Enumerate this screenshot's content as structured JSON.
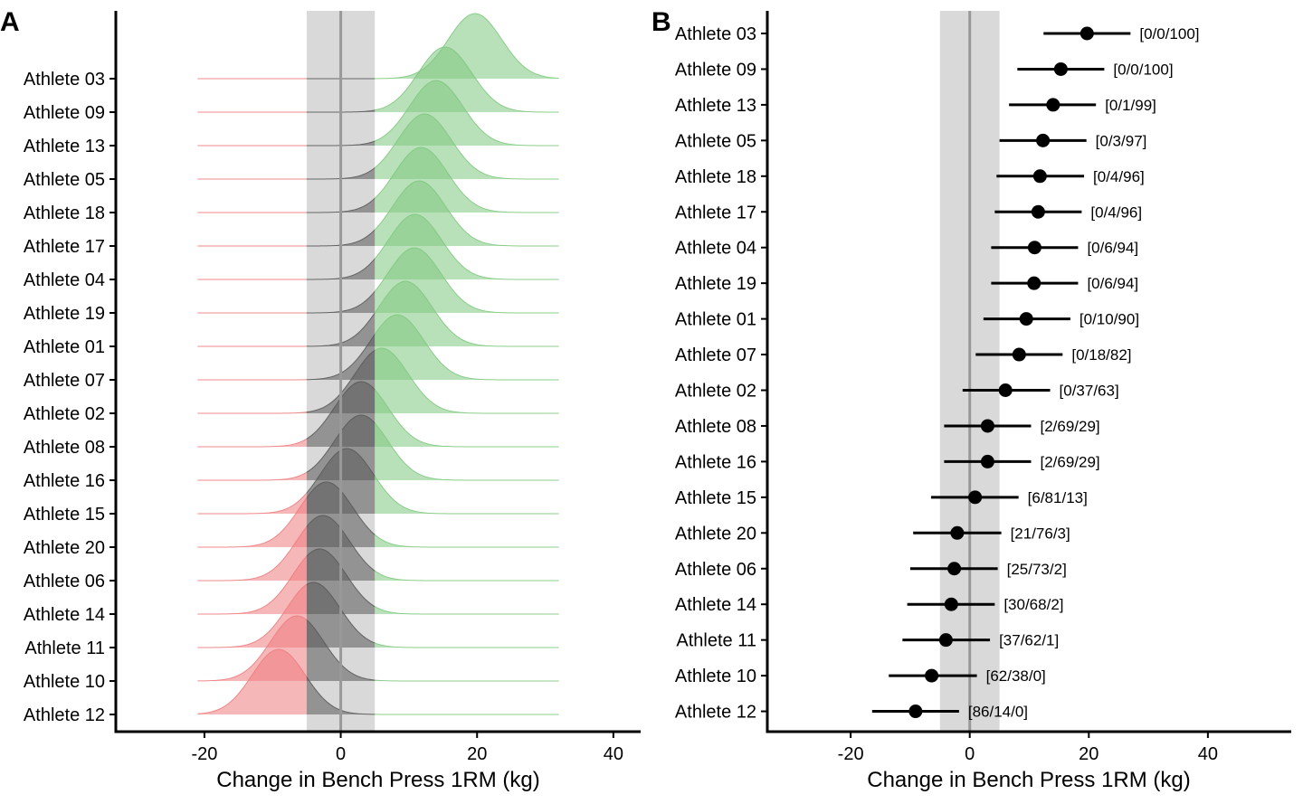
{
  "chart_data": [
    {
      "panel": "A",
      "type": "ridgeline",
      "xlabel": "Change in Bench Press 1RM (kg)",
      "xlim": [
        -33,
        44
      ],
      "x_ticks": [
        -20,
        0,
        20,
        40
      ],
      "shaded_region": [
        -5,
        5
      ],
      "reference_line": 0,
      "density_range": [
        -21,
        32
      ],
      "region_colors": {
        "below": "#ee7c80",
        "within": "#5a5a5a",
        "above": "#7fc97f"
      },
      "region_color_names": {
        "below": "red",
        "within": "gray",
        "above": "green"
      },
      "categories": [
        "Athlete 03",
        "Athlete 09",
        "Athlete 13",
        "Athlete 05",
        "Athlete 18",
        "Athlete 17",
        "Athlete 04",
        "Athlete 19",
        "Athlete 01",
        "Athlete 07",
        "Athlete 02",
        "Athlete 08",
        "Athlete 16",
        "Athlete 15",
        "Athlete 20",
        "Athlete 06",
        "Athlete 14",
        "Athlete 11",
        "Athlete 10",
        "Athlete 12"
      ],
      "means": [
        19.7,
        15.3,
        14.0,
        12.3,
        11.8,
        11.5,
        10.9,
        10.8,
        9.5,
        8.3,
        6.0,
        3.0,
        3.0,
        0.9,
        -2.1,
        -2.6,
        -3.1,
        -4.0,
        -6.4,
        -9.1
      ],
      "sd": 3.9,
      "grid": false
    },
    {
      "panel": "B",
      "type": "forest",
      "xlabel": "Change in Bench Press 1RM (kg)",
      "xlim": [
        -34,
        54
      ],
      "x_ticks": [
        -20,
        0,
        20,
        40
      ],
      "shaded_region": [
        -5,
        5
      ],
      "reference_line": 0,
      "categories": [
        "Athlete 03",
        "Athlete 09",
        "Athlete 13",
        "Athlete 05",
        "Athlete 18",
        "Athlete 17",
        "Athlete 04",
        "Athlete 19",
        "Athlete 01",
        "Athlete 07",
        "Athlete 02",
        "Athlete 08",
        "Athlete 16",
        "Athlete 15",
        "Athlete 20",
        "Athlete 06",
        "Athlete 14",
        "Athlete 11",
        "Athlete 10",
        "Athlete 12"
      ],
      "estimates": [
        19.7,
        15.3,
        14.0,
        12.3,
        11.8,
        11.5,
        10.9,
        10.8,
        9.5,
        8.3,
        6.0,
        3.0,
        3.0,
        0.9,
        -2.1,
        -2.6,
        -3.1,
        -4.0,
        -6.4,
        -9.1
      ],
      "lower": [
        12.4,
        8.0,
        6.6,
        5.0,
        4.5,
        4.2,
        3.6,
        3.6,
        2.3,
        1.0,
        -1.2,
        -4.3,
        -4.3,
        -6.5,
        -9.5,
        -10.0,
        -10.5,
        -11.3,
        -13.6,
        -16.4
      ],
      "upper": [
        27.0,
        22.6,
        21.2,
        19.6,
        19.2,
        18.8,
        18.2,
        18.2,
        16.9,
        15.6,
        13.5,
        10.3,
        10.3,
        8.2,
        5.3,
        4.7,
        4.2,
        3.4,
        1.2,
        -1.8
      ],
      "annotations": [
        "[0/0/100]",
        "[0/0/100]",
        "[0/1/99]",
        "[0/3/97]",
        "[0/4/96]",
        "[0/4/96]",
        "[0/6/94]",
        "[0/6/94]",
        "[0/10/90]",
        "[0/18/82]",
        "[0/37/63]",
        "[2/69/29]",
        "[2/69/29]",
        "[6/81/13]",
        "[21/76/3]",
        "[25/73/2]",
        "[30/68/2]",
        "[37/62/1]",
        "[62/38/0]",
        "[86/14/0]"
      ],
      "shade_color": "#d9d9d9",
      "reference_line_color": "#999999",
      "grid": false
    }
  ]
}
